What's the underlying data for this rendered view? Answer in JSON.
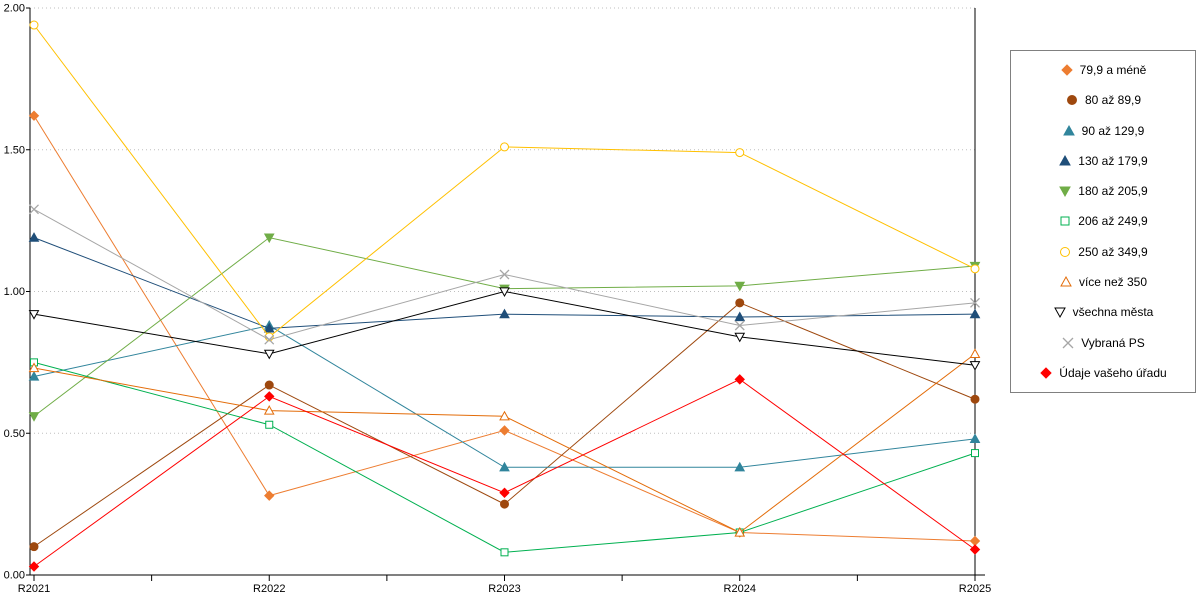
{
  "chart_data": {
    "type": "line",
    "categories": [
      "R2021",
      "R2022",
      "R2023",
      "R2024",
      "R2025"
    ],
    "ylim": [
      0,
      2
    ],
    "yticks": [
      0,
      0.5,
      1,
      1.5,
      2
    ],
    "ytick_labels": [
      "0.00",
      "0.50",
      "1.00",
      "1.50",
      "2.00"
    ],
    "grid": "horizontal-dotted",
    "legend_position": "right",
    "series": [
      {
        "name": "79,9 a méně",
        "color": "#ED7D31",
        "marker": "diamond",
        "filled": true,
        "values": [
          1.62,
          0.28,
          0.51,
          0.15,
          0.12
        ]
      },
      {
        "name": "80 až 89,9",
        "color": "#9E480E",
        "marker": "circle",
        "filled": true,
        "values": [
          0.1,
          0.67,
          0.25,
          0.96,
          0.62
        ]
      },
      {
        "name": "90 až 129,9",
        "color": "#31859C",
        "marker": "triangle-up",
        "filled": true,
        "values": [
          0.7,
          0.88,
          0.38,
          0.38,
          0.48
        ]
      },
      {
        "name": "130 až 179,9",
        "color": "#1F4E79",
        "marker": "triangle-up",
        "filled": true,
        "values": [
          1.19,
          0.87,
          0.92,
          0.91,
          0.92
        ]
      },
      {
        "name": "180 až 205,9",
        "color": "#70AD47",
        "marker": "triangle-down",
        "filled": true,
        "values": [
          0.56,
          1.19,
          1.01,
          1.02,
          1.09
        ]
      },
      {
        "name": "206 až 249,9",
        "color": "#00B050",
        "marker": "square",
        "filled": false,
        "values": [
          0.75,
          0.53,
          0.08,
          0.15,
          0.43
        ]
      },
      {
        "name": "250 až 349,9",
        "color": "#FFC000",
        "marker": "circle",
        "filled": false,
        "values": [
          1.94,
          0.84,
          1.51,
          1.49,
          1.08
        ]
      },
      {
        "name": "více než 350",
        "color": "#E36C09",
        "marker": "triangle-up",
        "filled": false,
        "values": [
          0.73,
          0.58,
          0.56,
          0.15,
          0.78
        ]
      },
      {
        "name": "všechna města",
        "color": "#000000",
        "marker": "triangle-down",
        "filled": false,
        "values": [
          0.92,
          0.78,
          1.0,
          0.84,
          0.74
        ]
      },
      {
        "name": "Vybraná PS",
        "color": "#A6A6A6",
        "marker": "x",
        "filled": false,
        "values": [
          1.29,
          0.83,
          1.06,
          0.88,
          0.96
        ]
      },
      {
        "name": "Údaje vašeho úřadu",
        "color": "#FF0000",
        "marker": "diamond",
        "filled": true,
        "values": [
          0.03,
          0.63,
          0.29,
          0.69,
          0.09
        ]
      }
    ]
  },
  "colors": {
    "background": "#FFFFFF",
    "grid": "#BFBFBF",
    "axis": "#000000",
    "tick_label": "#000000",
    "legend_border": "#808080"
  }
}
